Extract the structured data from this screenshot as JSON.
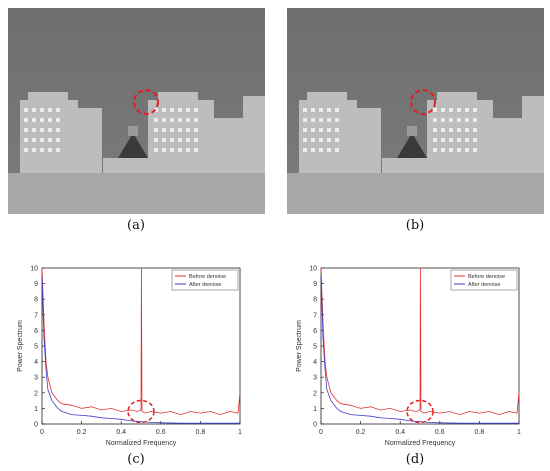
{
  "captions": {
    "a": "(a)",
    "b": "(b)",
    "c": "(c)",
    "d": "(d)"
  },
  "colors": {
    "before": "#e03030",
    "after": "#3a3ad0",
    "circle": "#e02020",
    "axis": "#222222"
  },
  "chart_data": [
    {
      "type": "line",
      "panel": "(c)",
      "xlabel": "Normalized Frequency",
      "ylabel": "Power Spectrum",
      "xlim": [
        0,
        1
      ],
      "ylim": [
        0,
        10
      ],
      "xticks": [
        "0",
        "0.2",
        "0.4",
        "0.6",
        "0.8",
        "1"
      ],
      "yticks": [
        "0",
        "1",
        "2",
        "3",
        "4",
        "5",
        "6",
        "7",
        "8",
        "9",
        "10"
      ],
      "legend": {
        "position": "top-right",
        "entries": [
          "Before denoise",
          "After denoise"
        ]
      },
      "series": [
        {
          "name": "Before denoise",
          "x": [
            0,
            0.01,
            0.02,
            0.03,
            0.05,
            0.08,
            0.1,
            0.15,
            0.2,
            0.25,
            0.3,
            0.35,
            0.4,
            0.45,
            0.48,
            0.5,
            0.502,
            0.505,
            0.52,
            0.55,
            0.6,
            0.65,
            0.7,
            0.75,
            0.8,
            0.85,
            0.9,
            0.95,
            0.99,
            1
          ],
          "y": [
            10,
            6.5,
            4.0,
            3.0,
            2.0,
            1.5,
            1.3,
            1.2,
            1.0,
            1.1,
            0.9,
            1.0,
            0.8,
            0.9,
            0.8,
            0.9,
            10,
            0.8,
            0.7,
            0.8,
            0.7,
            0.8,
            0.6,
            0.8,
            0.7,
            0.8,
            0.6,
            0.8,
            0.7,
            2.0
          ]
        },
        {
          "name": "After denoise",
          "x": [
            0,
            0.01,
            0.02,
            0.03,
            0.05,
            0.08,
            0.1,
            0.15,
            0.2,
            0.25,
            0.3,
            0.35,
            0.4,
            0.45,
            0.5,
            0.55,
            0.6,
            0.7,
            0.8,
            0.9,
            1
          ],
          "y": [
            9.5,
            5.5,
            3.5,
            2.2,
            1.5,
            1.0,
            0.8,
            0.6,
            0.55,
            0.5,
            0.4,
            0.35,
            0.3,
            0.2,
            0.15,
            0.1,
            0.08,
            0.05,
            0.05,
            0.05,
            0.05
          ]
        }
      ]
    },
    {
      "type": "line",
      "panel": "(d)",
      "xlabel": "Normalized Frequency",
      "ylabel": "Power Spectrum",
      "xlim": [
        0,
        1
      ],
      "ylim": [
        0,
        10
      ],
      "xticks": [
        "0",
        "0.2",
        "0.4",
        "0.6",
        "0.8",
        "1"
      ],
      "yticks": [
        "0",
        "1",
        "2",
        "3",
        "4",
        "5",
        "6",
        "7",
        "8",
        "9",
        "10"
      ],
      "legend": {
        "position": "top-right",
        "entries": [
          "Before denoise",
          "After denoise"
        ]
      },
      "series": [
        {
          "name": "Before denoise",
          "x": [
            0,
            0.01,
            0.02,
            0.03,
            0.05,
            0.08,
            0.1,
            0.15,
            0.2,
            0.25,
            0.3,
            0.35,
            0.4,
            0.45,
            0.48,
            0.5,
            0.502,
            0.505,
            0.52,
            0.55,
            0.6,
            0.65,
            0.7,
            0.75,
            0.8,
            0.85,
            0.9,
            0.95,
            0.99,
            1
          ],
          "y": [
            10,
            6.5,
            4.0,
            3.0,
            2.0,
            1.5,
            1.3,
            1.2,
            1.0,
            1.1,
            0.9,
            1.0,
            0.8,
            0.9,
            0.8,
            0.9,
            10,
            0.8,
            0.7,
            0.8,
            0.7,
            0.8,
            0.6,
            0.8,
            0.7,
            0.8,
            0.6,
            0.8,
            0.7,
            2.0
          ]
        },
        {
          "name": "After denoise",
          "x": [
            0,
            0.01,
            0.02,
            0.03,
            0.05,
            0.08,
            0.1,
            0.15,
            0.2,
            0.25,
            0.3,
            0.35,
            0.4,
            0.45,
            0.5,
            0.55,
            0.6,
            0.7,
            0.8,
            0.9,
            1
          ],
          "y": [
            9.5,
            5.5,
            3.5,
            2.2,
            1.5,
            1.0,
            0.8,
            0.6,
            0.55,
            0.5,
            0.4,
            0.35,
            0.3,
            0.2,
            0.15,
            0.1,
            0.08,
            0.05,
            0.05,
            0.05,
            0.05
          ]
        }
      ]
    }
  ]
}
